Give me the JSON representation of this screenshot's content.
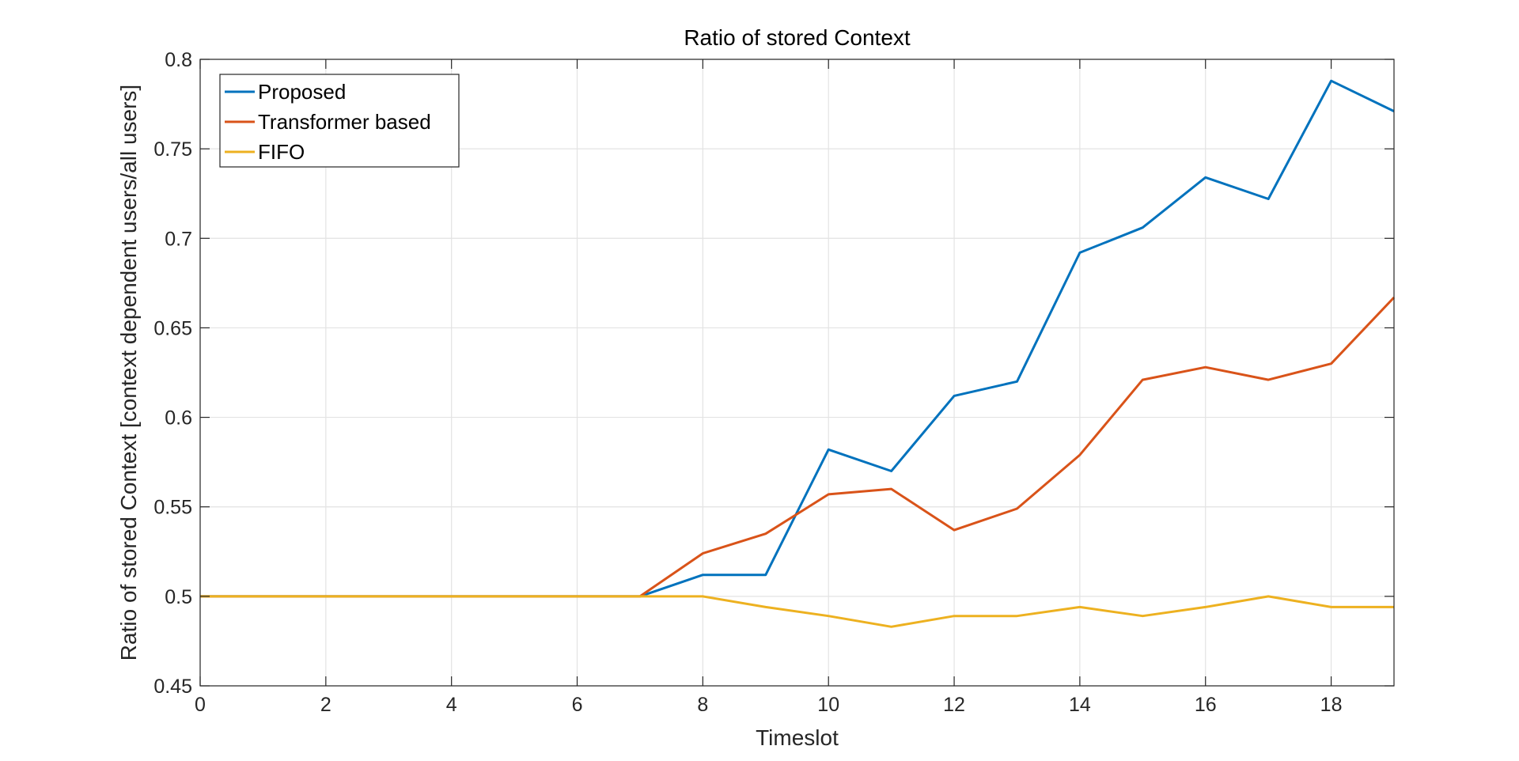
{
  "chart_data": {
    "type": "line",
    "title": "Ratio of stored Context",
    "xlabel": "Timeslot",
    "ylabel": "Ratio of stored Context [context dependent users/all users]",
    "xlim": [
      0,
      19
    ],
    "ylim": [
      0.45,
      0.8
    ],
    "xticks": [
      0,
      2,
      4,
      6,
      8,
      10,
      12,
      14,
      16,
      18
    ],
    "yticks": [
      0.45,
      0.5,
      0.55,
      0.6,
      0.65,
      0.7,
      0.75,
      0.8
    ],
    "xtick_labels": [
      "0",
      "2",
      "4",
      "6",
      "8",
      "10",
      "12",
      "14",
      "16",
      "18"
    ],
    "ytick_labels": [
      "0.45",
      "0.5",
      "0.55",
      "0.6",
      "0.65",
      "0.7",
      "0.75",
      "0.8"
    ],
    "grid": true,
    "legend_position": "top-left",
    "x": [
      0,
      1,
      2,
      3,
      4,
      5,
      6,
      7,
      8,
      9,
      10,
      11,
      12,
      13,
      14,
      15,
      16,
      17,
      18,
      19
    ],
    "series": [
      {
        "name": "Proposed",
        "color": "#0072BD",
        "values": [
          0.5,
          0.5,
          0.5,
          0.5,
          0.5,
          0.5,
          0.5,
          0.5,
          0.512,
          0.512,
          0.582,
          0.57,
          0.612,
          0.62,
          0.692,
          0.706,
          0.734,
          0.722,
          0.788,
          0.771
        ]
      },
      {
        "name": "Transformer based",
        "color": "#D95319",
        "values": [
          0.5,
          0.5,
          0.5,
          0.5,
          0.5,
          0.5,
          0.5,
          0.5,
          0.524,
          0.535,
          0.557,
          0.56,
          0.537,
          0.549,
          0.579,
          0.621,
          0.628,
          0.621,
          0.63,
          0.667
        ]
      },
      {
        "name": "FIFO",
        "color": "#EDB120",
        "values": [
          0.5,
          0.5,
          0.5,
          0.5,
          0.5,
          0.5,
          0.5,
          0.5,
          0.5,
          0.494,
          0.489,
          0.483,
          0.489,
          0.489,
          0.494,
          0.489,
          0.494,
          0.5,
          0.494,
          0.494
        ]
      }
    ]
  }
}
